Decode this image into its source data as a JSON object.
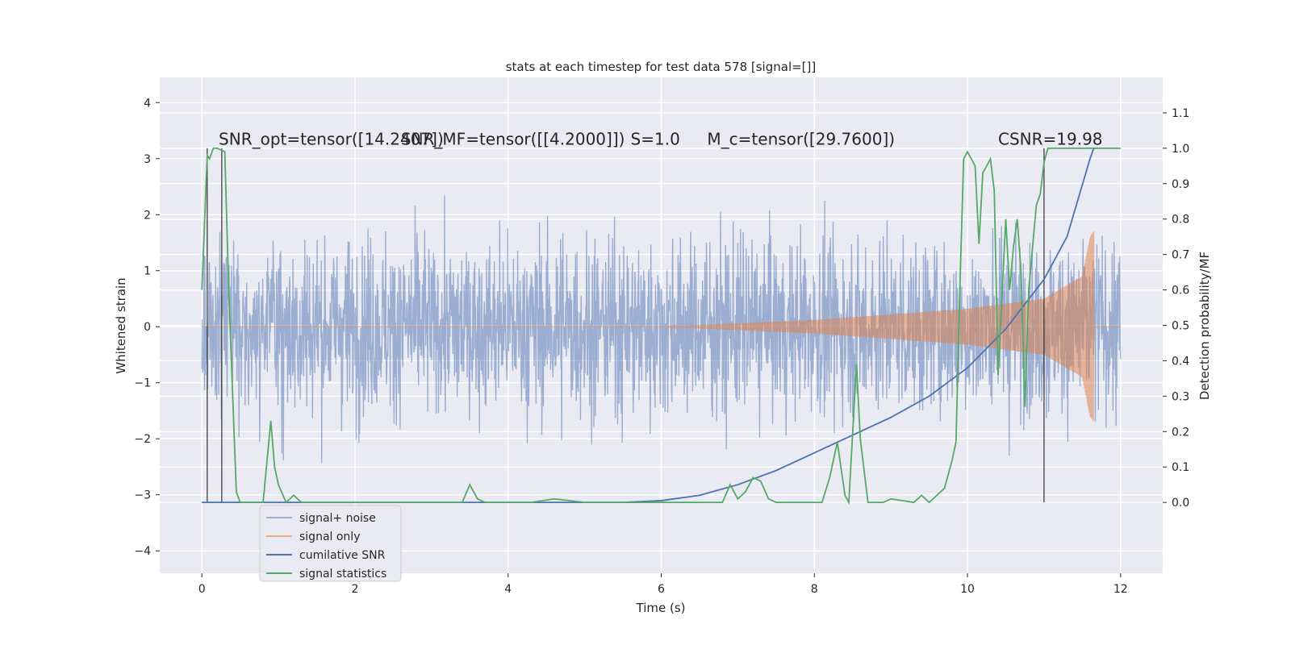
{
  "chart_data": {
    "type": "line",
    "title": "stats at each timestep for test data 578 [signal=[]]",
    "xlabel": "Time (s)",
    "ylabel": "Whitened strain",
    "ylabel_right": "Detection probability/MF",
    "xlim": [
      -0.55,
      12.55
    ],
    "ylim": [
      -4.4,
      4.45
    ],
    "ylim_right": [
      -0.2,
      1.2
    ],
    "grid": true,
    "legend_position": "lower-left",
    "x_ticks": [
      0,
      2,
      4,
      6,
      8,
      10,
      12
    ],
    "x_tick_labels": [
      "0",
      "2",
      "4",
      "6",
      "8",
      "10",
      "12"
    ],
    "y_ticks": [
      -4,
      -3,
      -2,
      -1,
      0,
      1,
      2,
      3,
      4
    ],
    "y_tick_labels": [
      "−4",
      "−3",
      "−2",
      "−1",
      "0",
      "1",
      "2",
      "3",
      "4"
    ],
    "y2_ticks": [
      0,
      0.1,
      0.2,
      0.3,
      0.4,
      0.5,
      0.6,
      0.7,
      0.8,
      0.9,
      1.0,
      1.1
    ],
    "y2_tick_labels": [
      "0.0",
      "0.1",
      "0.2",
      "0.3",
      "0.4",
      "0.5",
      "0.6",
      "0.7",
      "0.8",
      "0.9",
      "1.0",
      "1.1"
    ],
    "annotations": [
      {
        "text": "SNR_opt=tensor([14.2407])",
        "x": 0.22,
        "y": 3.25
      },
      {
        "text": "SNR_MF=tensor([[4.2000]])",
        "x": 2.6,
        "y": 3.25
      },
      {
        "text": "S=1.0",
        "x": 5.6,
        "y": 3.25
      },
      {
        "text": "M_c=tensor([29.7600])",
        "x": 6.6,
        "y": 3.25
      },
      {
        "text": "CSNR=19.98",
        "x": 10.4,
        "y": 3.25
      }
    ],
    "vlines_x": [
      0.07,
      0.26,
      11.0
    ],
    "vline_range_right": [
      0.0,
      1.0
    ],
    "series": [
      {
        "name": "signal+ noise",
        "color": "#4c72b0",
        "axis": "left",
        "x_range": [
          0,
          12
        ],
        "typical_abs": 1.1,
        "extreme_range": [
          -4.0,
          4.1
        ]
      },
      {
        "name": "signal only",
        "color": "#dd8452",
        "axis": "left",
        "x_range": [
          0,
          11.65
        ],
        "envelope_x": [
          0,
          6,
          8,
          10,
          11,
          11.5,
          11.6,
          11.65
        ],
        "envelope_amp": [
          0,
          0,
          0.12,
          0.32,
          0.5,
          0.9,
          1.6,
          1.7
        ]
      },
      {
        "name": "cumilative SNR",
        "color": "#4c72b0",
        "axis": "right",
        "x": [
          0,
          5.5,
          6,
          6.5,
          7,
          7.5,
          8,
          8.5,
          9,
          9.5,
          10,
          10.5,
          11,
          11.3,
          11.6,
          11.65
        ],
        "values": [
          0,
          0,
          0.005,
          0.02,
          0.05,
          0.09,
          0.14,
          0.19,
          0.24,
          0.3,
          0.38,
          0.49,
          0.63,
          0.75,
          0.97,
          1.0
        ]
      },
      {
        "name": "signal statistics",
        "color": "#55a868",
        "axis": "right",
        "x": [
          0,
          0.07,
          0.1,
          0.15,
          0.2,
          0.3,
          0.35,
          0.45,
          0.5,
          0.6,
          0.8,
          0.9,
          0.95,
          1.0,
          1.1,
          1.2,
          1.3,
          1.4,
          2.0,
          3.0,
          3.4,
          3.5,
          3.6,
          3.7,
          4.0,
          4.3,
          4.6,
          5.0,
          5.5,
          6.0,
          6.5,
          6.8,
          6.9,
          7.0,
          7.1,
          7.2,
          7.3,
          7.4,
          7.5,
          7.8,
          8.0,
          8.1,
          8.2,
          8.3,
          8.4,
          8.45,
          8.55,
          8.6,
          8.7,
          8.9,
          9.0,
          9.3,
          9.4,
          9.5,
          9.7,
          9.8,
          9.85,
          9.9,
          9.95,
          10.0,
          10.05,
          10.1,
          10.15,
          10.2,
          10.3,
          10.35,
          10.4,
          10.5,
          10.55,
          10.6,
          10.65,
          10.7,
          10.75,
          10.8,
          10.9,
          10.95,
          11.0,
          11.05,
          11.1,
          11.2,
          11.3,
          11.5,
          12.0
        ],
        "values": [
          0.6,
          0.98,
          0.97,
          1.0,
          1.0,
          0.99,
          0.6,
          0.03,
          0.0,
          0.0,
          0.0,
          0.23,
          0.1,
          0.05,
          0.0,
          0.02,
          0.0,
          0.0,
          0.0,
          0.0,
          0.0,
          0.05,
          0.01,
          0.0,
          0.0,
          0.0,
          0.01,
          0.0,
          0.0,
          0.0,
          0.0,
          0.0,
          0.05,
          0.01,
          0.03,
          0.07,
          0.06,
          0.01,
          0.0,
          0.0,
          0.0,
          0.0,
          0.07,
          0.17,
          0.02,
          0.0,
          0.39,
          0.18,
          0.0,
          0.0,
          0.01,
          0.0,
          0.02,
          0.0,
          0.04,
          0.12,
          0.17,
          0.6,
          0.97,
          0.99,
          0.97,
          0.95,
          0.73,
          0.93,
          0.97,
          0.88,
          0.36,
          0.8,
          0.6,
          0.72,
          0.8,
          0.65,
          0.27,
          0.6,
          0.84,
          0.87,
          0.96,
          1.0,
          1.0,
          1.0,
          1.0,
          1.0,
          1.0
        ]
      }
    ]
  }
}
